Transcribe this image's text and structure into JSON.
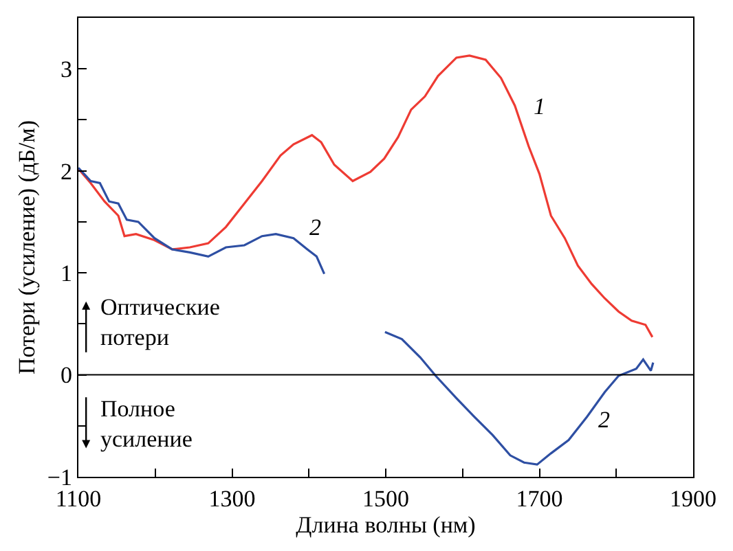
{
  "chart_data": {
    "type": "line",
    "xlabel": "Длина волны (нм)",
    "ylabel": "Потери (усиление) (дБ/м)",
    "xlim": [
      1100,
      1900
    ],
    "ylim": [
      -1,
      3.5
    ],
    "xticks": [
      1100,
      {
        "value": 1200,
        "label": null
      },
      1300,
      {
        "value": 1400,
        "label": null
      },
      1500,
      {
        "value": 1600,
        "label": null
      },
      1700,
      {
        "value": 1800,
        "label": null
      },
      1900
    ],
    "yticks": [
      {
        "value": -1,
        "label": "−1"
      },
      {
        "value": -0.5,
        "label": null
      },
      0,
      {
        "value": 0.5,
        "label": null
      },
      1,
      {
        "value": 1.5,
        "label": null
      },
      2,
      {
        "value": 2.5,
        "label": null
      },
      3
    ],
    "marker": "none",
    "line_style": "solid",
    "ref_lines": [
      {
        "axis": "y",
        "value": 0,
        "color": "#000000"
      }
    ],
    "series": [
      {
        "color": "#ee3b33",
        "x": [
          1100,
          1116,
          1134,
          1152,
          1160,
          1175,
          1199,
          1222,
          1245,
          1269,
          1292,
          1316,
          1339,
          1363,
          1380,
          1404,
          1416,
          1433,
          1457,
          1480,
          1498,
          1516,
          1533,
          1551,
          1568,
          1592,
          1609,
          1630,
          1650,
          1668,
          1686,
          1700,
          1715,
          1733,
          1750,
          1768,
          1785,
          1803,
          1820,
          1838,
          1847
        ],
        "values": [
          2.02,
          1.88,
          1.7,
          1.56,
          1.36,
          1.38,
          1.32,
          1.23,
          1.25,
          1.29,
          1.45,
          1.68,
          1.9,
          2.15,
          2.26,
          2.35,
          2.28,
          2.06,
          1.9,
          1.99,
          2.12,
          2.33,
          2.6,
          2.73,
          2.93,
          3.11,
          3.13,
          3.09,
          2.91,
          2.64,
          2.24,
          1.97,
          1.56,
          1.34,
          1.07,
          0.89,
          0.75,
          0.62,
          0.53,
          0.49,
          0.37
        ]
      },
      {
        "color": "#2e4fa3",
        "x": [
          1100,
          1116,
          1128,
          1140,
          1152,
          1163,
          1178,
          1199,
          1222,
          1245,
          1269,
          1292,
          1316,
          1339,
          1357,
          1380,
          1398,
          1410,
          1420,
          1460,
          1499,
          1521,
          1545,
          1565,
          1592,
          1615,
          1639,
          1662,
          1680,
          1697,
          1715,
          1738,
          1762,
          1785,
          1803,
          1826,
          1835,
          1845,
          1848
        ],
        "values": [
          2.03,
          1.9,
          1.88,
          1.7,
          1.68,
          1.52,
          1.5,
          1.34,
          1.23,
          1.2,
          1.16,
          1.25,
          1.27,
          1.36,
          1.38,
          1.34,
          1.23,
          1.16,
          0.99,
          null,
          0.42,
          0.35,
          0.17,
          -0.01,
          -0.23,
          -0.41,
          -0.59,
          -0.79,
          -0.86,
          -0.88,
          -0.77,
          -0.64,
          -0.41,
          -0.17,
          -0.01,
          0.06,
          0.15,
          0.04,
          0.12
        ]
      }
    ],
    "annotations": [
      "1",
      "2",
      "2",
      "Оптические\nпотери",
      "Полное\nусиление"
    ]
  }
}
